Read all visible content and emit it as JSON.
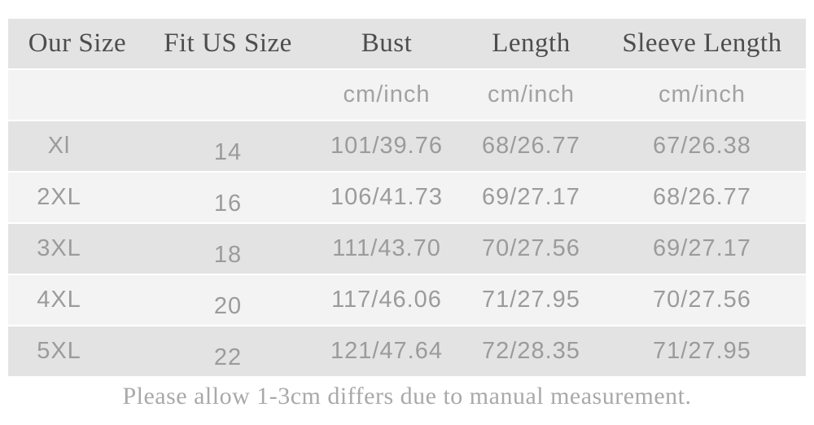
{
  "table": {
    "header": [
      "Our Size",
      "Fit US Size",
      "Bust",
      "Length",
      "Sleeve Length"
    ],
    "units": [
      "",
      "",
      "cm/inch",
      "cm/inch",
      "cm/inch"
    ],
    "rows": [
      [
        "Xl",
        "14",
        "101/39.76",
        "68/26.77",
        "67/26.38"
      ],
      [
        "2XL",
        "16",
        "106/41.73",
        "69/27.17",
        "68/26.77"
      ],
      [
        "3XL",
        "18",
        "111/43.70",
        "70/27.56",
        "69/27.17"
      ],
      [
        "4XL",
        "20",
        "117/46.06",
        "71/27.95",
        "70/27.56"
      ],
      [
        "5XL",
        "22",
        "121/47.64",
        "72/28.35",
        "71/27.95"
      ]
    ]
  },
  "footer": {
    "note": "Please allow 1-3cm differs due to manual measurement."
  },
  "colors": {
    "band_dark": "#e3e3e3",
    "band_light": "#f3f3f3",
    "header_text": "#4d4d4d",
    "unit_text": "#a2a2a2",
    "data_text": "#9b9b9b",
    "footer_text": "#a9a9a9",
    "background": "#ffffff"
  }
}
